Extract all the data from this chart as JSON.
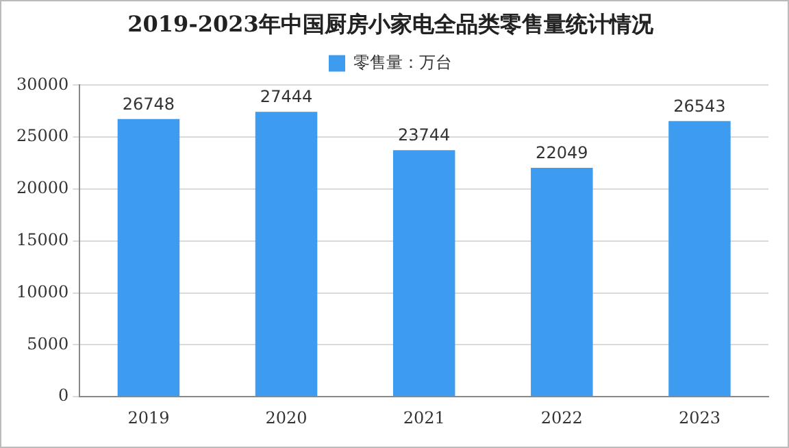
{
  "chart_data": {
    "type": "bar",
    "title": "2019-2023年中国厨房小家电全品类零售量统计情况",
    "categories": [
      "2019",
      "2020",
      "2021",
      "2022",
      "2023"
    ],
    "series": [
      {
        "name": "零售量：万台",
        "color": "#3d9bf0",
        "values": [
          26748,
          27444,
          23744,
          22049,
          26543
        ]
      }
    ],
    "ylim": [
      0,
      30000
    ],
    "yticks": [
      0,
      5000,
      10000,
      15000,
      20000,
      25000,
      30000
    ],
    "grid": "y",
    "legend": "top",
    "data_labels": true
  }
}
